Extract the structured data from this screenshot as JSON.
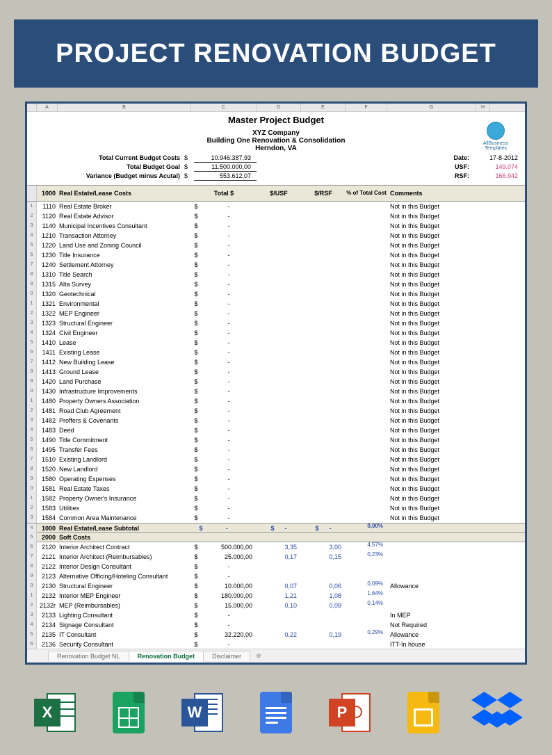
{
  "banner": {
    "title": "PROJECT RENOVATION BUDGET"
  },
  "columns": [
    "A",
    "B",
    "C",
    "D",
    "E",
    "F",
    "G",
    "H"
  ],
  "master": {
    "title": "Master Project Budget",
    "company": "XYZ Company",
    "subtitle": "Building One  Renovation & Consolidation",
    "location": "Herndon,  VA",
    "logo_label": "AllBusiness\nTemplates"
  },
  "summary": {
    "rows": [
      {
        "label": "Total Current Budget Costs",
        "cur": "$",
        "val": "10.946.387,93",
        "rlab": "Date:",
        "rval": "17-8-2012",
        "rclass": ""
      },
      {
        "label": "Total Budget Goal",
        "cur": "$",
        "val": "11.500.000,00",
        "rlab": "USF:",
        "rval": "149.074",
        "rclass": "pink"
      },
      {
        "label": "Variance (Budget minus Acutal)",
        "cur": "$",
        "val": "553.612,07",
        "rlab": "RSF:",
        "rval": "166.942",
        "rclass": "pink"
      }
    ]
  },
  "section_header": {
    "code": "1000",
    "name": "Real Estate/Lease Costs",
    "cols": [
      "Total $",
      "$/USF",
      "$/RSF",
      "% of Total Cost",
      "Comments"
    ]
  },
  "rows1": [
    {
      "r": "1",
      "code": "1110",
      "name": "Real Estate Broker",
      "comm": "Not in this Budget"
    },
    {
      "r": "2",
      "code": "1120",
      "name": "Real Estate Advisor",
      "comm": "Not in this Budget"
    },
    {
      "r": "3",
      "code": "1140",
      "name": "Municipal Incentives Consultant",
      "comm": "Not in this Budget"
    },
    {
      "r": "4",
      "code": "1210",
      "name": "Transaction Attorney",
      "comm": "Not in this Budget"
    },
    {
      "r": "5",
      "code": "1220",
      "name": "Land Use and Zoning Council",
      "comm": "Not in this Budget"
    },
    {
      "r": "6",
      "code": "1230",
      "name": "Title Insurance",
      "comm": "Not in this Budget"
    },
    {
      "r": "7",
      "code": "1240",
      "name": "Settlement Attorney",
      "comm": "Not in this Budget"
    },
    {
      "r": "8",
      "code": "1310",
      "name": "Title Search",
      "comm": "Not in this Budget"
    },
    {
      "r": "9",
      "code": "1315",
      "name": "Alta Survey",
      "comm": "Not in this Budget"
    },
    {
      "r": "0",
      "code": "1320",
      "name": "Geotechnical",
      "comm": "Not in this Budget"
    },
    {
      "r": "1",
      "code": "1321",
      "name": "Environmental",
      "comm": "Not in this Budget"
    },
    {
      "r": "2",
      "code": "1322",
      "name": "MEP Engineer",
      "comm": "Not in this Budget"
    },
    {
      "r": "3",
      "code": "1323",
      "name": "Structural Engineer",
      "comm": "Not in this Budget"
    },
    {
      "r": "4",
      "code": "1324",
      "name": "Civil Engineer",
      "comm": "Not in this Budget"
    },
    {
      "r": "5",
      "code": "1410",
      "name": "Lease",
      "comm": "Not in this Budget"
    },
    {
      "r": "6",
      "code": "1411",
      "name": "Existing Lease",
      "comm": "Not in this Budget"
    },
    {
      "r": "7",
      "code": "1412",
      "name": "New Building Lease",
      "comm": "Not in this Budget"
    },
    {
      "r": "8",
      "code": "1413",
      "name": "Ground Lease",
      "comm": "Not in this Budget"
    },
    {
      "r": "9",
      "code": "1420",
      "name": "Land Purchase",
      "comm": "Not in this Budget"
    },
    {
      "r": "0",
      "code": "1430",
      "name": "Infrastructure Improvements",
      "comm": "Not in this Budget"
    },
    {
      "r": "1",
      "code": "1480",
      "name": "Property Owners Association",
      "comm": "Not in this Budget"
    },
    {
      "r": "2",
      "code": "1481",
      "name": "Road Club Agreement",
      "comm": "Not in this Budget"
    },
    {
      "r": "3",
      "code": "1482",
      "name": "Proffers & Covenants",
      "comm": "Not in this Budget"
    },
    {
      "r": "4",
      "code": "1483",
      "name": "Deed",
      "comm": "Not in this Budget"
    },
    {
      "r": "5",
      "code": "1490",
      "name": "Title Commitment",
      "comm": "Not in this Budget"
    },
    {
      "r": "6",
      "code": "1495",
      "name": "Transfer Fees",
      "comm": "Not in this Budget"
    },
    {
      "r": "7",
      "code": "1510",
      "name": "Existing Landlord",
      "comm": "Not in this Budget"
    },
    {
      "r": "8",
      "code": "1520",
      "name": "New Landlord",
      "comm": "Not in this Budget"
    },
    {
      "r": "9",
      "code": "1580",
      "name": "Operating Expenses",
      "comm": "Not in this Budget"
    },
    {
      "r": "0",
      "code": "1581",
      "name": "Real Estate Taxes",
      "comm": "Not in this Budget"
    },
    {
      "r": "1",
      "code": "1582",
      "name": "Property Owner's Insurance",
      "comm": "Not in this Budget"
    },
    {
      "r": "2",
      "code": "1583",
      "name": "Utilities",
      "comm": "Not in this Budget"
    },
    {
      "r": "3",
      "code": "1584",
      "name": "Common Area Maintenance",
      "comm": "Not in this Budget"
    }
  ],
  "subtotal": {
    "r": "4",
    "code": "1000",
    "name": "Real Estate/Lease Subtotal",
    "total": "-",
    "usf": "-",
    "rsf": "-",
    "pct": "0,00%"
  },
  "section2": {
    "r": "5",
    "code": "2000",
    "name": "Soft Costs"
  },
  "rows2": [
    {
      "r": "6",
      "code": "2120",
      "name": "Interior Architect Contract",
      "total": "500.000,00",
      "usf": "3,35",
      "rsf": "3,00",
      "pct": "4,57%",
      "comm": ""
    },
    {
      "r": "7",
      "code": "2121",
      "name": "Interior Architect (Reimbursables)",
      "total": "25.000,00",
      "usf": "0,17",
      "rsf": "0,15",
      "pct": "0,23%",
      "comm": ""
    },
    {
      "r": "8",
      "code": "2122",
      "name": "Interior Design Consultant",
      "total": "-",
      "usf": "",
      "rsf": "",
      "pct": "",
      "comm": ""
    },
    {
      "r": "9",
      "code": "2123",
      "name": "Alternative Officing/Hoteling Consultant",
      "total": "-",
      "usf": "",
      "rsf": "",
      "pct": "",
      "comm": ""
    },
    {
      "r": "0",
      "code": "2130",
      "name": "Structural Engineer",
      "total": "10.000,00",
      "usf": "0,07",
      "rsf": "0,06",
      "pct": "0,09%",
      "comm": "Allowance"
    },
    {
      "r": "1",
      "code": "2132",
      "name": "Interior MEP Engineer",
      "total": "180.000,00",
      "usf": "1,21",
      "rsf": "1,08",
      "pct": "1,64%",
      "comm": ""
    },
    {
      "r": "2",
      "code": "2132r",
      "name": "MEP (Reimbursables)",
      "total": "15.000,00",
      "usf": "0,10",
      "rsf": "0,09",
      "pct": "0,14%",
      "comm": ""
    },
    {
      "r": "3",
      "code": "2133",
      "name": "Lighting Consultant",
      "total": "-",
      "usf": "",
      "rsf": "",
      "pct": "",
      "comm": "In MEP"
    },
    {
      "r": "4",
      "code": "2134",
      "name": "Signage Consultant",
      "total": "-",
      "usf": "",
      "rsf": "",
      "pct": "",
      "comm": "Not Required"
    },
    {
      "r": "5",
      "code": "2135",
      "name": "IT Consultant",
      "total": "32.220,00",
      "usf": "0,22",
      "rsf": "0,19",
      "pct": "0,29%",
      "comm": "Allowance"
    },
    {
      "r": "6",
      "code": "2136",
      "name": "Security Consultant",
      "total": "-",
      "usf": "",
      "rsf": "",
      "pct": "",
      "comm": "ITT-In house"
    }
  ],
  "tabs": {
    "items": [
      "Renovation Budget NL",
      "Renovation Budget",
      "Disclaimer"
    ],
    "active": 1
  },
  "apps": [
    "excel",
    "gsheets",
    "word",
    "gdocs",
    "ppt",
    "gslides",
    "dropbox"
  ]
}
